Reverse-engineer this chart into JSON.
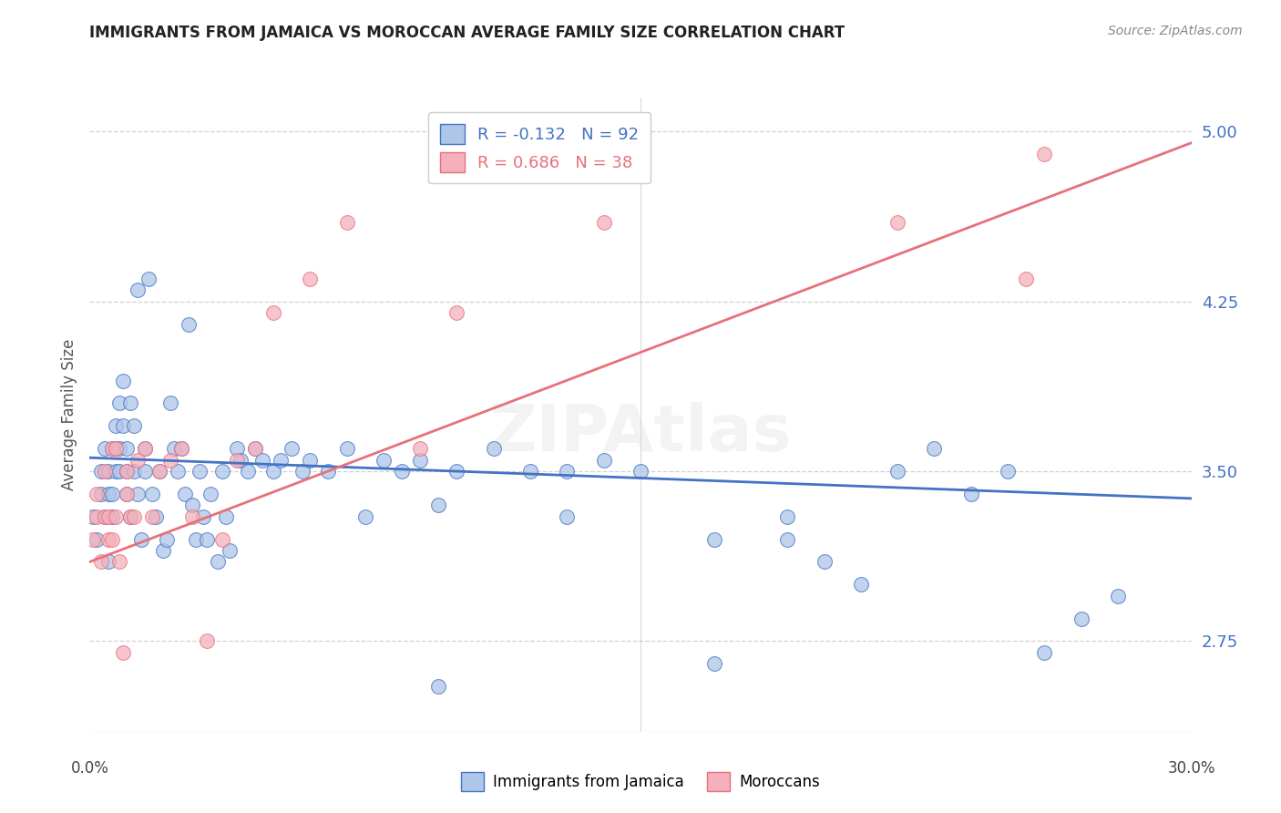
{
  "title": "IMMIGRANTS FROM JAMAICA VS MOROCCAN AVERAGE FAMILY SIZE CORRELATION CHART",
  "source": "Source: ZipAtlas.com",
  "ylabel": "Average Family Size",
  "yticks": [
    2.75,
    3.5,
    4.25,
    5.0
  ],
  "xlim": [
    0.0,
    0.3
  ],
  "ylim": [
    2.35,
    5.15
  ],
  "legend1_label": "Immigrants from Jamaica",
  "legend1_r": "-0.132",
  "legend1_n": "92",
  "legend1_color": "#aec6e8",
  "legend2_label": "Moroccans",
  "legend2_r": "0.686",
  "legend2_n": "38",
  "legend2_color": "#f4b0bc",
  "blue_line_color": "#4472c4",
  "pink_line_color": "#e8707a",
  "scatter_blue_color": "#aec6e8",
  "scatter_pink_color": "#f4b0bc",
  "title_color": "#222222",
  "axis_label_color": "#4472c4",
  "source_color": "#888888",
  "jamaica_x": [
    0.001,
    0.002,
    0.003,
    0.003,
    0.004,
    0.004,
    0.005,
    0.005,
    0.005,
    0.006,
    0.006,
    0.006,
    0.007,
    0.007,
    0.007,
    0.008,
    0.008,
    0.008,
    0.009,
    0.009,
    0.01,
    0.01,
    0.01,
    0.011,
    0.011,
    0.012,
    0.012,
    0.013,
    0.013,
    0.014,
    0.015,
    0.015,
    0.016,
    0.017,
    0.018,
    0.019,
    0.02,
    0.021,
    0.022,
    0.023,
    0.024,
    0.025,
    0.026,
    0.027,
    0.028,
    0.029,
    0.03,
    0.031,
    0.032,
    0.033,
    0.035,
    0.036,
    0.037,
    0.038,
    0.04,
    0.041,
    0.043,
    0.045,
    0.047,
    0.05,
    0.052,
    0.055,
    0.058,
    0.06,
    0.065,
    0.07,
    0.075,
    0.08,
    0.085,
    0.09,
    0.095,
    0.1,
    0.11,
    0.12,
    0.13,
    0.14,
    0.15,
    0.17,
    0.19,
    0.2,
    0.21,
    0.22,
    0.24,
    0.26,
    0.27,
    0.28,
    0.25,
    0.23,
    0.17,
    0.13,
    0.095,
    0.19
  ],
  "jamaica_y": [
    3.3,
    3.2,
    3.4,
    3.5,
    3.6,
    3.3,
    3.1,
    3.4,
    3.5,
    3.3,
    3.6,
    3.4,
    3.7,
    3.5,
    3.6,
    3.8,
    3.5,
    3.6,
    3.9,
    3.7,
    3.5,
    3.4,
    3.6,
    3.3,
    3.8,
    3.5,
    3.7,
    3.4,
    4.3,
    3.2,
    3.5,
    3.6,
    4.35,
    3.4,
    3.3,
    3.5,
    3.15,
    3.2,
    3.8,
    3.6,
    3.5,
    3.6,
    3.4,
    4.15,
    3.35,
    3.2,
    3.5,
    3.3,
    3.2,
    3.4,
    3.1,
    3.5,
    3.3,
    3.15,
    3.6,
    3.55,
    3.5,
    3.6,
    3.55,
    3.5,
    3.55,
    3.6,
    3.5,
    3.55,
    3.5,
    3.6,
    3.3,
    3.55,
    3.5,
    3.55,
    3.35,
    3.5,
    3.6,
    3.5,
    3.5,
    3.55,
    3.5,
    3.2,
    3.2,
    3.1,
    3.0,
    3.5,
    3.4,
    2.7,
    2.85,
    2.95,
    3.5,
    3.6,
    2.65,
    3.3,
    2.55,
    3.3
  ],
  "moroccan_x": [
    0.001,
    0.002,
    0.002,
    0.003,
    0.004,
    0.004,
    0.005,
    0.005,
    0.006,
    0.006,
    0.007,
    0.007,
    0.008,
    0.009,
    0.01,
    0.01,
    0.011,
    0.012,
    0.013,
    0.015,
    0.017,
    0.019,
    0.022,
    0.025,
    0.028,
    0.032,
    0.036,
    0.04,
    0.045,
    0.05,
    0.06,
    0.07,
    0.09,
    0.1,
    0.14,
    0.22,
    0.255,
    0.26
  ],
  "moroccan_y": [
    3.2,
    3.3,
    3.4,
    3.1,
    3.3,
    3.5,
    3.3,
    3.2,
    3.6,
    3.2,
    3.3,
    3.6,
    3.1,
    2.7,
    3.4,
    3.5,
    3.3,
    3.3,
    3.55,
    3.6,
    3.3,
    3.5,
    3.55,
    3.6,
    3.3,
    2.75,
    3.2,
    3.55,
    3.6,
    4.2,
    4.35,
    4.6,
    3.6,
    4.2,
    4.6,
    4.6,
    4.35,
    4.9
  ],
  "jamaica_line_x": [
    0.0,
    0.3
  ],
  "jamaica_line_y": [
    3.56,
    3.38
  ],
  "moroccan_line_x": [
    0.0,
    0.3
  ],
  "moroccan_line_y": [
    3.1,
    4.95
  ]
}
